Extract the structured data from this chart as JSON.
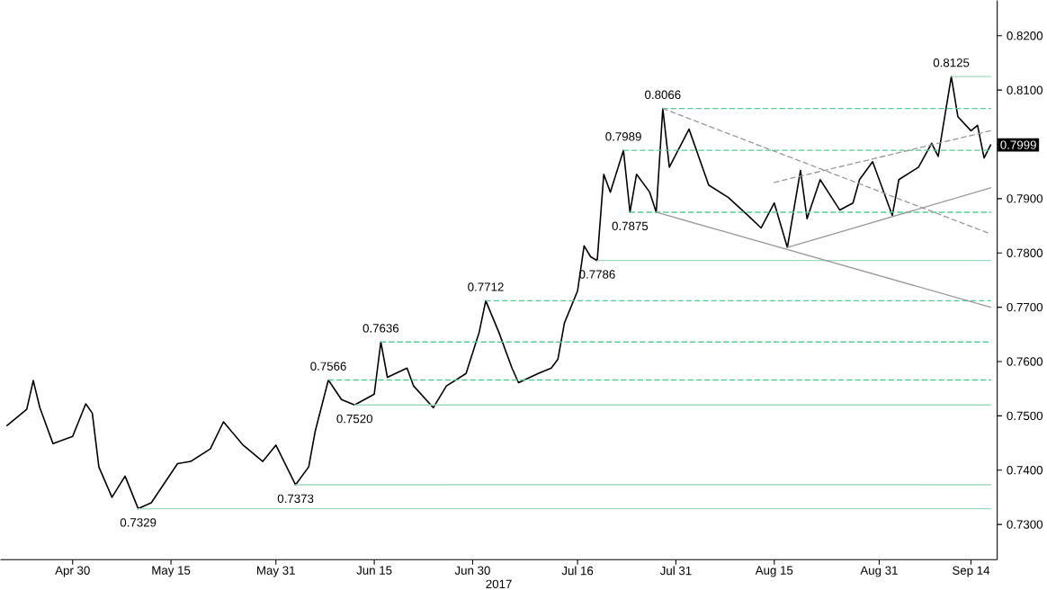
{
  "chart_data": {
    "type": "line",
    "xlabel": "2017",
    "xlim": [
      "2017-04-19",
      "2017-09-18"
    ],
    "ylim": [
      0.7235,
      0.8265
    ],
    "xticks": [
      {
        "value": "2017-04-30",
        "label": "Apr 30"
      },
      {
        "value": "2017-05-15",
        "label": "May 15"
      },
      {
        "value": "2017-05-31",
        "label": "May 31"
      },
      {
        "value": "2017-06-15",
        "label": "Jun 15"
      },
      {
        "value": "2017-06-30",
        "label": "Jun 30"
      },
      {
        "value": "2017-07-16",
        "label": "Jul 16"
      },
      {
        "value": "2017-07-31",
        "label": "Jul 31"
      },
      {
        "value": "2017-08-15",
        "label": "Aug 15"
      },
      {
        "value": "2017-08-31",
        "label": "Aug 31"
      },
      {
        "value": "2017-09-14",
        "label": "Sep 14"
      }
    ],
    "yticks": [
      {
        "value": 0.73,
        "label": "0.7300"
      },
      {
        "value": 0.74,
        "label": "0.7400"
      },
      {
        "value": 0.75,
        "label": "0.7500"
      },
      {
        "value": 0.76,
        "label": "0.7600"
      },
      {
        "value": 0.77,
        "label": "0.7700"
      },
      {
        "value": 0.78,
        "label": "0.7800"
      },
      {
        "value": 0.79,
        "label": "0.7900"
      },
      {
        "value": 0.8,
        "label": null
      },
      {
        "value": 0.81,
        "label": "0.8100"
      },
      {
        "value": 0.82,
        "label": "0.8200"
      }
    ],
    "series": [
      {
        "color": "#000000",
        "line_style": "solid",
        "x": [
          "2017-04-20",
          "2017-04-23",
          "2017-04-24",
          "2017-04-25",
          "2017-04-27",
          "2017-04-30",
          "2017-05-02",
          "2017-05-03",
          "2017-05-04",
          "2017-05-06",
          "2017-05-08",
          "2017-05-10",
          "2017-05-12",
          "2017-05-16",
          "2017-05-18",
          "2017-05-21",
          "2017-05-23",
          "2017-05-26",
          "2017-05-29",
          "2017-05-31",
          "2017-06-03",
          "2017-06-05",
          "2017-06-06",
          "2017-06-08",
          "2017-06-10",
          "2017-06-12",
          "2017-06-15",
          "2017-06-16",
          "2017-06-17",
          "2017-06-20",
          "2017-06-21",
          "2017-06-24",
          "2017-06-26",
          "2017-06-29",
          "2017-07-01",
          "2017-07-02",
          "2017-07-04",
          "2017-07-06",
          "2017-07-07",
          "2017-07-10",
          "2017-07-12",
          "2017-07-13",
          "2017-07-14",
          "2017-07-16",
          "2017-07-17",
          "2017-07-18",
          "2017-07-19",
          "2017-07-20",
          "2017-07-21",
          "2017-07-23",
          "2017-07-24",
          "2017-07-25",
          "2017-07-27",
          "2017-07-28",
          "2017-07-29",
          "2017-07-30",
          "2017-08-02",
          "2017-08-05",
          "2017-08-08",
          "2017-08-11",
          "2017-08-13",
          "2017-08-15",
          "2017-08-17",
          "2017-08-19",
          "2017-08-20",
          "2017-08-22",
          "2017-08-25",
          "2017-08-27",
          "2017-08-28",
          "2017-08-30",
          "2017-09-02",
          "2017-09-03",
          "2017-09-06",
          "2017-09-08",
          "2017-09-09",
          "2017-09-11",
          "2017-09-12",
          "2017-09-14",
          "2017-09-15",
          "2017-09-16",
          "2017-09-17"
        ],
        "values": [
          0.7482,
          0.7512,
          0.7565,
          0.7515,
          0.7449,
          0.7462,
          0.7522,
          0.7505,
          0.7406,
          0.735,
          0.7389,
          0.7329,
          0.734,
          0.7412,
          0.7416,
          0.7439,
          0.7489,
          0.7446,
          0.7416,
          0.7446,
          0.7373,
          0.7406,
          0.7472,
          0.7566,
          0.753,
          0.752,
          0.754,
          0.7636,
          0.7571,
          0.7588,
          0.7555,
          0.7515,
          0.7555,
          0.7578,
          0.7654,
          0.7712,
          0.7654,
          0.7588,
          0.7561,
          0.7578,
          0.7588,
          0.7604,
          0.7671,
          0.773,
          0.7813,
          0.7793,
          0.7786,
          0.7945,
          0.7912,
          0.7989,
          0.7875,
          0.7945,
          0.7912,
          0.7875,
          0.8066,
          0.7958,
          0.8028,
          0.7925,
          0.7902,
          0.7869,
          0.7846,
          0.7892,
          0.781,
          0.7952,
          0.7863,
          0.7935,
          0.7879,
          0.7892,
          0.7935,
          0.7968,
          0.7869,
          0.7935,
          0.7958,
          0.8002,
          0.7978,
          0.8125,
          0.8051,
          0.8025,
          0.8035,
          0.7975,
          0.7999
        ]
      },
      {
        "color": "#9fd9bf",
        "line_style": "solid",
        "x": [
          "2017-05-10",
          "2017-09-17"
        ],
        "values": [
          0.7329,
          0.7329
        ]
      },
      {
        "color": "#9fd9bf",
        "line_style": "solid",
        "x": [
          "2017-06-03",
          "2017-09-17"
        ],
        "values": [
          0.7373,
          0.7373
        ]
      },
      {
        "color": "#9fd9bf",
        "line_style": "solid",
        "x": [
          "2017-06-12",
          "2017-09-17"
        ],
        "values": [
          0.752,
          0.752
        ]
      },
      {
        "color": "#55cc99",
        "line_style": "dashed",
        "x": [
          "2017-06-08",
          "2017-09-17"
        ],
        "values": [
          0.7566,
          0.7566
        ]
      },
      {
        "color": "#55cc99",
        "line_style": "dashed",
        "x": [
          "2017-06-16",
          "2017-09-17"
        ],
        "values": [
          0.7636,
          0.7636
        ]
      },
      {
        "color": "#55cc99",
        "line_style": "dashed",
        "x": [
          "2017-07-02",
          "2017-09-17"
        ],
        "values": [
          0.7712,
          0.7712
        ]
      },
      {
        "color": "#9fd9bf",
        "line_style": "solid",
        "x": [
          "2017-07-19",
          "2017-09-17"
        ],
        "values": [
          0.7786,
          0.7786
        ]
      },
      {
        "color": "#55cc99",
        "line_style": "dashed",
        "x": [
          "2017-07-24",
          "2017-09-17"
        ],
        "values": [
          0.7875,
          0.7875
        ]
      },
      {
        "color": "#55cc99",
        "line_style": "dashed",
        "x": [
          "2017-07-23",
          "2017-09-17"
        ],
        "values": [
          0.7989,
          0.7989
        ]
      },
      {
        "color": "#55cc99",
        "line_style": "dashed",
        "x": [
          "2017-07-29",
          "2017-09-17"
        ],
        "values": [
          0.8066,
          0.8066
        ]
      },
      {
        "color": "#9fd9bf",
        "line_style": "solid",
        "x": [
          "2017-09-11",
          "2017-09-17"
        ],
        "values": [
          0.8125,
          0.8125
        ]
      },
      {
        "color": "#999999",
        "line_style": "solid",
        "x": [
          "2017-07-28",
          "2017-09-17"
        ],
        "values": [
          0.7875,
          0.77
        ]
      },
      {
        "color": "#999999",
        "line_style": "solid",
        "x": [
          "2017-08-17",
          "2017-09-17"
        ],
        "values": [
          0.781,
          0.792
        ]
      },
      {
        "color": "#999999",
        "line_style": "dashed",
        "x": [
          "2017-07-29",
          "2017-09-17"
        ],
        "values": [
          0.8066,
          0.7835
        ]
      },
      {
        "color": "#999999",
        "line_style": "dashed",
        "x": [
          "2017-08-15",
          "2017-09-17"
        ],
        "values": [
          0.793,
          0.8025
        ]
      }
    ],
    "annotations": [
      {
        "text": "0.7329",
        "x": "2017-05-10",
        "y": 0.7329
      },
      {
        "text": "0.7373",
        "x": "2017-06-03",
        "y": 0.7373
      },
      {
        "text": "0.7566",
        "x": "2017-06-08",
        "y": 0.7566
      },
      {
        "text": "0.7520",
        "x": "2017-06-12",
        "y": 0.752
      },
      {
        "text": "0.7636",
        "x": "2017-06-16",
        "y": 0.7636
      },
      {
        "text": "0.7712",
        "x": "2017-07-02",
        "y": 0.7712
      },
      {
        "text": "0.7786",
        "x": "2017-07-19",
        "y": 0.7786
      },
      {
        "text": "0.7989",
        "x": "2017-07-23",
        "y": 0.7989
      },
      {
        "text": "0.7875",
        "x": "2017-07-24",
        "y": 0.7875
      },
      {
        "text": "0.8066",
        "x": "2017-07-29",
        "y": 0.8066
      },
      {
        "text": "0.8125",
        "x": "2017-09-11",
        "y": 0.8125
      },
      {
        "text": "0.7999",
        "x": "2017-09-17",
        "y": 0.7999
      }
    ]
  }
}
